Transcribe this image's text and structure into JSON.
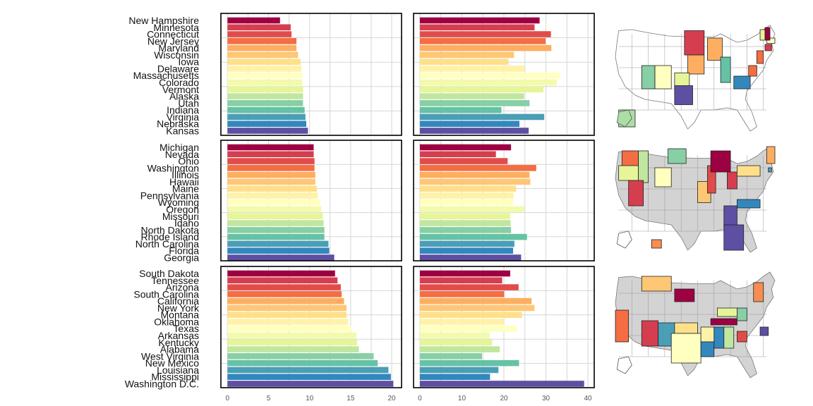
{
  "chart_data": {
    "type": "bar",
    "orientation": "horizontal",
    "grid": true,
    "legend": "none",
    "palette": [
      "#9e0142",
      "#d53e4f",
      "#e14c4a",
      "#f46d43",
      "#f88c51",
      "#fdae61",
      "#fdc776",
      "#fee08b",
      "#fff2a8",
      "#ffffbf",
      "#f2faad",
      "#e6f598",
      "#c0e6a0",
      "#abdda4",
      "#87cfa4",
      "#66c2a5",
      "#4a9eb6",
      "#3288bd",
      "#5e4fa2"
    ],
    "panels": [
      {
        "states": [
          "New Hampshire",
          "Minnesota",
          "Connecticut",
          "New Jersey",
          "Maryland",
          "Wisconsin",
          "Iowa",
          "Delaware",
          "Massachusetts",
          "Colorado",
          "Vermont",
          "Alaska",
          "Utah",
          "Indiana",
          "Virginia",
          "Nebraska",
          "Kansas"
        ],
        "left_values": [
          6.4,
          7.7,
          7.8,
          8.4,
          8.4,
          8.6,
          8.9,
          9.0,
          9.1,
          9.1,
          9.2,
          9.2,
          9.2,
          9.4,
          9.5,
          9.6,
          9.8
        ],
        "right_values": [
          28.5,
          27.3,
          31.2,
          29.9,
          31.3,
          22.4,
          21.1,
          24.9,
          33.4,
          32.6,
          29.4,
          24.8,
          26.1,
          19.4,
          29.6,
          23.7,
          25.9
        ]
      },
      {
        "states": [
          "Michigan",
          "Nevada",
          "Ohio",
          "Washington",
          "Illinois",
          "Hawaii",
          "Maine",
          "Pennsylvania",
          "Wyoming",
          "Oregon",
          "Missouri",
          "Idaho",
          "North Dakota",
          "Rhode Island",
          "North Carolina",
          "Florida",
          "Georgia"
        ],
        "left_values": [
          10.5,
          10.5,
          10.6,
          10.6,
          10.7,
          10.7,
          10.9,
          11.0,
          11.3,
          11.4,
          11.6,
          11.7,
          11.8,
          11.8,
          12.3,
          12.4,
          13.0
        ],
        "right_values": [
          21.7,
          18.1,
          20.9,
          27.7,
          26.1,
          26.3,
          22.9,
          22.3,
          22.2,
          24.9,
          21.5,
          21.6,
          21.7,
          25.5,
          22.5,
          22.2,
          24.1
        ]
      },
      {
        "states": [
          "South Dakota",
          "Tennessee",
          "Arizona",
          "South Carolina",
          "California",
          "New York",
          "Montana",
          "Oklahoma",
          "Texas",
          "Arkansas",
          "Kentucky",
          "Alabama",
          "West Virginia",
          "New Mexico",
          "Louisiana",
          "Mississippi",
          "Washington D.C."
        ],
        "left_values": [
          13.1,
          13.4,
          13.8,
          13.9,
          14.2,
          14.5,
          14.5,
          14.7,
          15.1,
          15.7,
          15.8,
          16.0,
          17.8,
          18.3,
          19.6,
          19.9,
          20.2
        ],
        "right_values": [
          21.5,
          19.6,
          23.5,
          20.1,
          26.6,
          27.3,
          24.3,
          20.0,
          23.1,
          16.6,
          17.2,
          19.0,
          14.8,
          23.6,
          18.7,
          16.7,
          39.1
        ]
      }
    ],
    "left_axis": {
      "ticks": [
        0,
        5,
        10,
        15,
        20
      ],
      "xlim": [
        -0.8,
        21.2
      ]
    },
    "right_axis": {
      "ticks": [
        0,
        10,
        20,
        30,
        40
      ],
      "xlim": [
        -1.5,
        41.5
      ]
    }
  }
}
